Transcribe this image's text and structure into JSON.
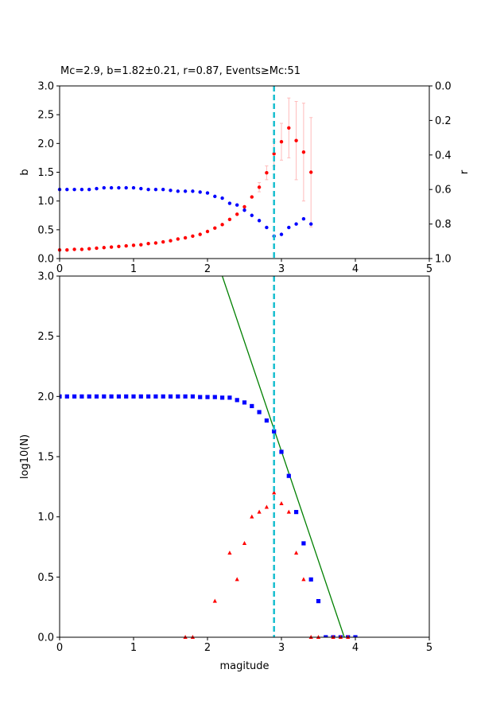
{
  "title": "Mc=2.9, b=1.82±0.21, r=0.87, Events≥Mc:51",
  "chart_data": [
    {
      "type": "scatter",
      "ylabel": "b",
      "y2label": "r",
      "xlim": [
        0,
        5
      ],
      "ylim": [
        0,
        3.0
      ],
      "y2lim": [
        1.0,
        0.0
      ],
      "xticks": [
        "0",
        "1",
        "2",
        "3",
        "4",
        "5"
      ],
      "yticks": [
        "0.0",
        "0.5",
        "1.0",
        "1.5",
        "2.0",
        "2.5",
        "3.0"
      ],
      "y2ticks": [
        "0.0",
        "0.2",
        "0.4",
        "0.6",
        "0.8",
        "1.0"
      ],
      "mc_line": 2.9,
      "series": [
        {
          "color": "#ff0000",
          "axis": "left",
          "x": [
            0.0,
            0.1,
            0.2,
            0.3,
            0.4,
            0.5,
            0.6,
            0.7,
            0.8,
            0.9,
            1.0,
            1.1,
            1.2,
            1.3,
            1.4,
            1.5,
            1.6,
            1.7,
            1.8,
            1.9,
            2.0,
            2.1,
            2.2,
            2.3,
            2.4,
            2.5,
            2.6,
            2.7,
            2.8,
            2.9,
            3.0,
            3.1,
            3.2,
            3.3,
            3.4
          ],
          "y": [
            0.15,
            0.15,
            0.16,
            0.16,
            0.17,
            0.18,
            0.19,
            0.2,
            0.21,
            0.22,
            0.23,
            0.24,
            0.26,
            0.27,
            0.29,
            0.31,
            0.34,
            0.36,
            0.39,
            0.42,
            0.47,
            0.53,
            0.59,
            0.68,
            0.77,
            0.9,
            1.07,
            1.24,
            1.49,
            1.82,
            2.03,
            2.27,
            2.05,
            1.85,
            1.5
          ],
          "err": [
            0,
            0,
            0,
            0,
            0,
            0,
            0,
            0,
            0,
            0,
            0,
            0,
            0,
            0,
            0,
            0,
            0,
            0,
            0,
            0,
            0,
            0,
            0,
            0,
            0,
            0,
            0,
            0.08,
            0.12,
            0.21,
            0.32,
            0.52,
            0.68,
            0.85,
            0.95
          ]
        },
        {
          "color": "#0000ff",
          "axis": "right",
          "x": [
            0.0,
            0.1,
            0.2,
            0.3,
            0.4,
            0.5,
            0.6,
            0.7,
            0.8,
            0.9,
            1.0,
            1.1,
            1.2,
            1.3,
            1.4,
            1.5,
            1.6,
            1.7,
            1.8,
            1.9,
            2.0,
            2.1,
            2.2,
            2.3,
            2.4,
            2.5,
            2.6,
            2.7,
            2.8,
            2.9,
            3.0,
            3.1,
            3.2,
            3.3,
            3.4
          ],
          "y": [
            0.6,
            0.6,
            0.6,
            0.6,
            0.6,
            0.595,
            0.59,
            0.59,
            0.59,
            0.59,
            0.59,
            0.595,
            0.6,
            0.6,
            0.6,
            0.605,
            0.61,
            0.61,
            0.61,
            0.615,
            0.62,
            0.64,
            0.65,
            0.68,
            0.69,
            0.72,
            0.75,
            0.78,
            0.82,
            0.87,
            0.86,
            0.82,
            0.8,
            0.77,
            0.8
          ]
        }
      ]
    },
    {
      "type": "scatter",
      "xlabel": "magitude",
      "ylabel": "log10(N)",
      "xlim": [
        0,
        5
      ],
      "ylim": [
        0,
        3.0
      ],
      "xticks": [
        "0",
        "1",
        "2",
        "3",
        "4",
        "5"
      ],
      "yticks": [
        "0.0",
        "0.5",
        "1.0",
        "1.5",
        "2.0",
        "2.5",
        "3.0"
      ],
      "mc_line": 2.9,
      "fit_line": {
        "color": "#008000",
        "x": [
          2.2,
          3.85
        ],
        "y": [
          3.0,
          0.0
        ]
      },
      "series": [
        {
          "color": "#0000ff",
          "marker": "square",
          "x": [
            0.0,
            0.1,
            0.2,
            0.3,
            0.4,
            0.5,
            0.6,
            0.7,
            0.8,
            0.9,
            1.0,
            1.1,
            1.2,
            1.3,
            1.4,
            1.5,
            1.6,
            1.7,
            1.8,
            1.9,
            2.0,
            2.1,
            2.2,
            2.3,
            2.4,
            2.5,
            2.6,
            2.7,
            2.8,
            2.9,
            3.0,
            3.1,
            3.2,
            3.3,
            3.4,
            3.5,
            3.6,
            3.7,
            3.8,
            3.9,
            4.0
          ],
          "y": [
            2.0,
            2.0,
            2.0,
            2.0,
            2.0,
            2.0,
            2.0,
            2.0,
            2.0,
            2.0,
            2.0,
            2.0,
            2.0,
            2.0,
            2.0,
            2.0,
            2.0,
            2.0,
            2.0,
            1.995,
            1.995,
            1.995,
            1.99,
            1.99,
            1.97,
            1.95,
            1.92,
            1.87,
            1.8,
            1.71,
            1.54,
            1.34,
            1.04,
            0.78,
            0.48,
            0.3,
            0.0,
            0.0,
            0.0,
            0.0,
            0.0
          ]
        },
        {
          "color": "#ff0000",
          "marker": "triangle",
          "x": [
            1.7,
            1.8,
            2.1,
            2.3,
            2.4,
            2.5,
            2.6,
            2.7,
            2.8,
            2.9,
            3.0,
            3.1,
            3.2,
            3.3,
            3.4,
            3.5,
            3.7,
            3.8,
            3.9
          ],
          "y": [
            0.0,
            0.0,
            0.3,
            0.7,
            0.48,
            0.78,
            1.0,
            1.04,
            1.08,
            1.2,
            1.11,
            1.04,
            0.7,
            0.48,
            0.0,
            0.0,
            0.0,
            0.0,
            0.0
          ]
        }
      ]
    }
  ]
}
